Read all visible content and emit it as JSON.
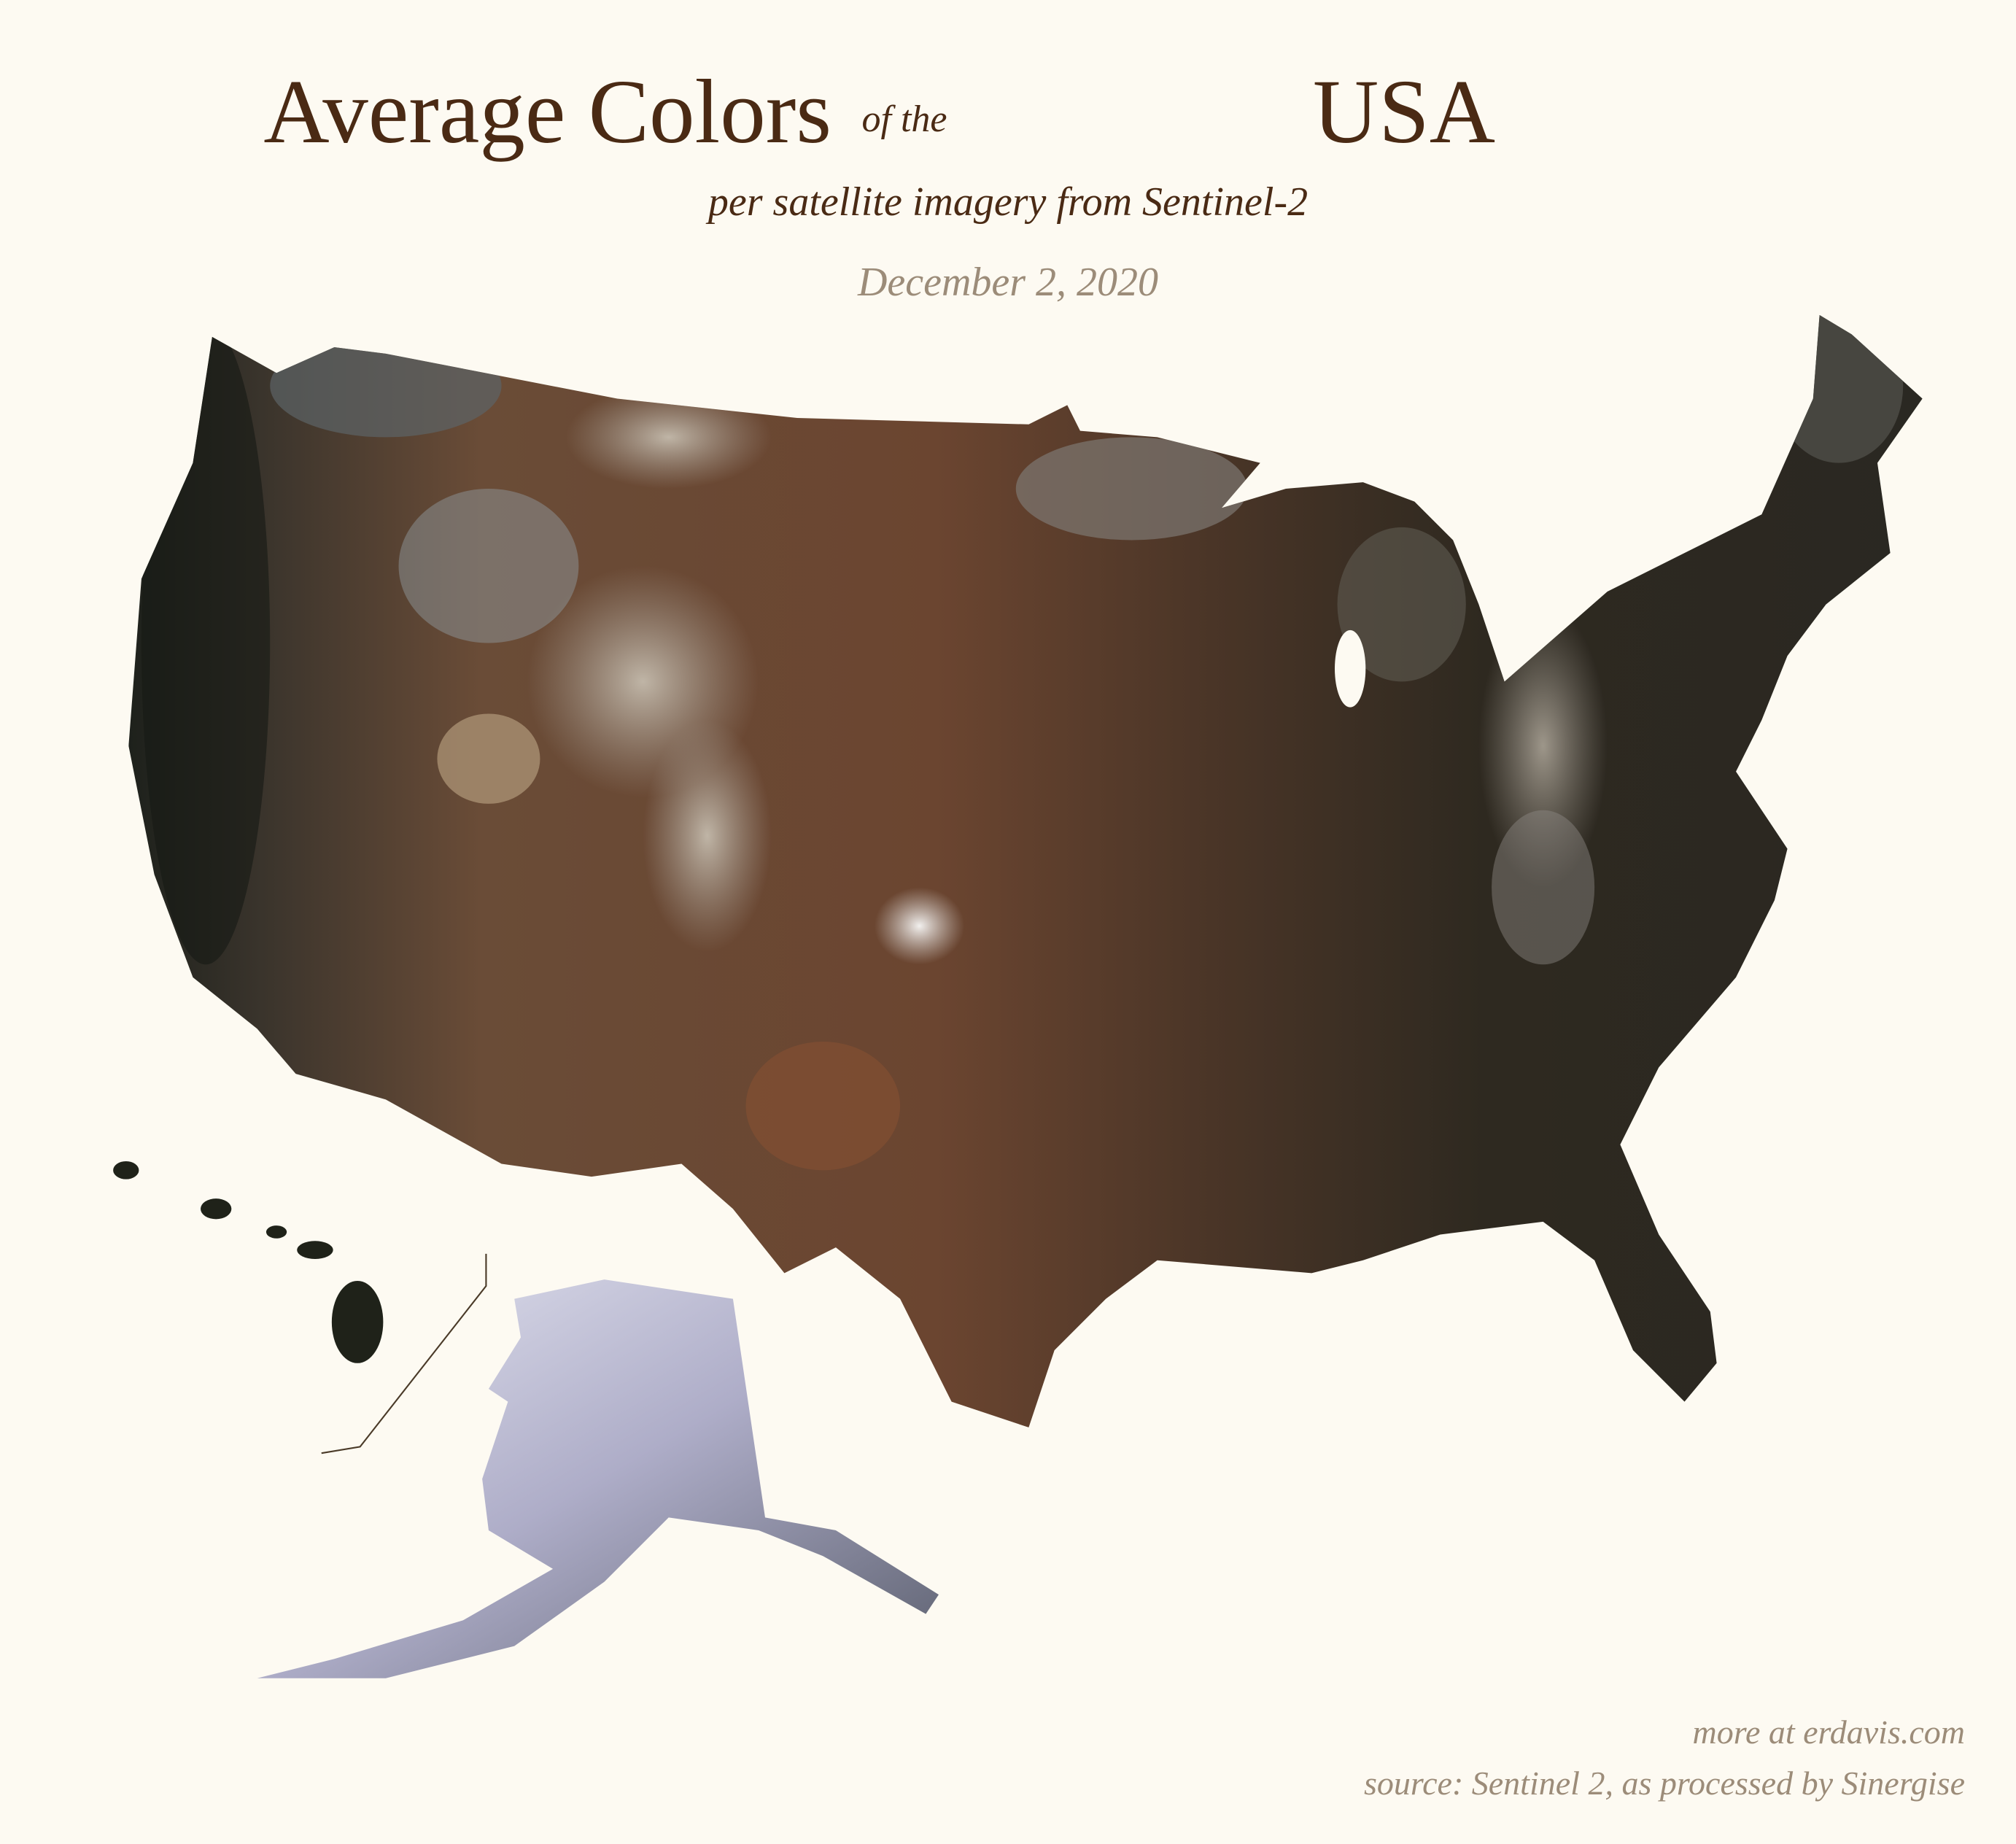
{
  "header": {
    "title_main": "Average Colors",
    "title_connector": "of the",
    "title_end": "USA",
    "subtitle": "per satellite imagery from Sentinel-2",
    "date": "December 2, 2020"
  },
  "footer": {
    "link": "more at erdavis.com",
    "source": "source: Sentinel 2, as processed by Sinergise"
  }
}
